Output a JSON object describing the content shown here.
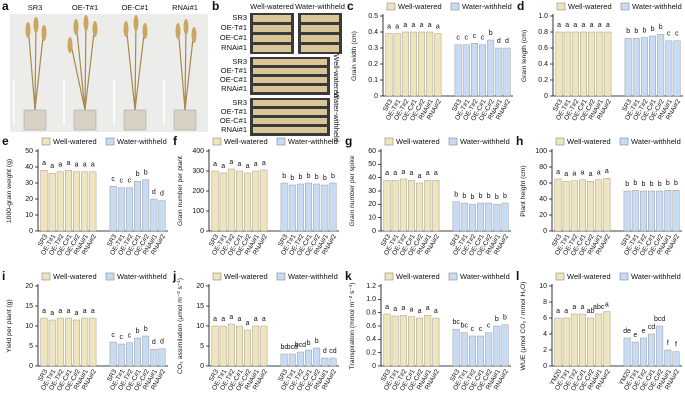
{
  "panels": {
    "a": {
      "label": "a",
      "plants": [
        "SR3",
        "OE-T#1",
        "OE-C#1",
        "RNAi#1"
      ]
    },
    "b": {
      "label": "b",
      "columns": [
        "Well-watered",
        "Water-withheld"
      ],
      "rows": [
        "SR3",
        "OE-T#1",
        "OE-C#1",
        "RNAi#1"
      ],
      "side_labels": [
        "Well-watered",
        "Water-withheld"
      ]
    }
  },
  "chart_data": [
    {
      "type": "bar",
      "label": "c",
      "ylabel": "Grain width (cm)",
      "categories": [
        "SR3",
        "OE-T#1",
        "OE-T#2",
        "OE-C#1",
        "OE-C#2",
        "RNAi#1",
        "RNAi#2"
      ],
      "ylim": [
        0,
        0.5
      ],
      "yticks": [
        0,
        0.1,
        0.2,
        0.3,
        0.4,
        0.5
      ],
      "series": [
        {
          "name": "Well-watered",
          "color": "#efe4bb",
          "values": [
            0.39,
            0.39,
            0.4,
            0.4,
            0.4,
            0.4,
            0.39
          ],
          "letters": [
            "a",
            "a",
            "a",
            "a",
            "a",
            "a",
            "a"
          ]
        },
        {
          "name": "Water-withheld",
          "color": "#c7dbf3",
          "values": [
            0.32,
            0.32,
            0.33,
            0.32,
            0.35,
            0.3,
            0.3
          ],
          "letters": [
            "c",
            "c",
            "c",
            "c",
            "b",
            "d",
            "d"
          ]
        }
      ]
    },
    {
      "type": "bar",
      "label": "d",
      "ylabel": "Grain length (cm)",
      "categories": [
        "SR3",
        "OE-T#1",
        "OE-T#2",
        "OE-C#1",
        "OE-C#2",
        "RNAi#1",
        "RNAi#2"
      ],
      "ylim": [
        0,
        1
      ],
      "yticks": [
        0,
        0.2,
        0.4,
        0.6,
        0.8,
        {
          "value": 1,
          "label": "1.0"
        }
      ],
      "series": [
        {
          "name": "Well-watered",
          "color": "#efe4bb",
          "values": [
            0.8,
            0.8,
            0.8,
            0.8,
            0.8,
            0.8,
            0.8
          ],
          "letters": [
            "a",
            "a",
            "a",
            "a",
            "a",
            "a",
            "a"
          ]
        },
        {
          "name": "Water-withheld",
          "color": "#c7dbf3",
          "values": [
            0.72,
            0.72,
            0.73,
            0.75,
            0.77,
            0.69,
            0.69
          ],
          "letters": [
            "b",
            "b",
            "b",
            "b",
            "b",
            "c",
            "c"
          ]
        }
      ]
    },
    {
      "type": "bar",
      "label": "e",
      "ylabel": "1000-grain weight (g)",
      "categories": [
        "SR3",
        "OE-T#1",
        "OE-T#2",
        "OE-C#1",
        "OE-C#2",
        "RNAi#1",
        "RNAi#2"
      ],
      "ylim": [
        0,
        50
      ],
      "yticks": [
        0,
        10,
        20,
        30,
        40,
        50
      ],
      "series": [
        {
          "name": "Well-watered",
          "color": "#efe4bb",
          "values": [
            38,
            36,
            37,
            38,
            37,
            37,
            37
          ],
          "letters": [
            "a",
            "a",
            "a",
            "a",
            "a",
            "a",
            "a"
          ]
        },
        {
          "name": "Water-withheld",
          "color": "#c7dbf3",
          "values": [
            28,
            27,
            27,
            31,
            32,
            20,
            19
          ],
          "letters": [
            "c",
            "c",
            "c",
            "b",
            "b",
            "d",
            "d"
          ]
        }
      ]
    },
    {
      "type": "bar",
      "label": "f",
      "ylabel": "Grain number per plant",
      "categories": [
        "SR3",
        "OE-T#1",
        "OE-T#2",
        "OE-C#1",
        "OE-C#2",
        "RNAi#1",
        "RNAi#2"
      ],
      "ylim": [
        0,
        400
      ],
      "yticks": [
        0,
        100,
        200,
        300,
        400
      ],
      "series": [
        {
          "name": "Well-watered",
          "color": "#efe4bb",
          "values": [
            300,
            290,
            310,
            300,
            290,
            300,
            305
          ],
          "letters": [
            "a",
            "a",
            "a",
            "a",
            "a",
            "a",
            "a"
          ]
        },
        {
          "name": "Water-withheld",
          "color": "#c7dbf3",
          "values": [
            240,
            230,
            235,
            240,
            235,
            230,
            240
          ],
          "letters": [
            "b",
            "b",
            "b",
            "b",
            "b",
            "b",
            "b"
          ]
        }
      ]
    },
    {
      "type": "bar",
      "label": "g",
      "ylabel": "Grain number per spike",
      "categories": [
        "SR3",
        "OE-T#1",
        "OE-T#2",
        "OE-C#1",
        "OE-C#2",
        "RNAi#1",
        "RNAi#2"
      ],
      "ylim": [
        0,
        60
      ],
      "yticks": [
        0,
        10,
        20,
        30,
        40,
        50,
        60
      ],
      "series": [
        {
          "name": "Well-watered",
          "color": "#efe4bb",
          "values": [
            38,
            38,
            39,
            38,
            36,
            38,
            38
          ],
          "letters": [
            "a",
            "a",
            "a",
            "a",
            "a",
            "a",
            "a"
          ]
        },
        {
          "name": "Water-withheld",
          "color": "#c7dbf3",
          "values": [
            22,
            21,
            20,
            21,
            21,
            20,
            21
          ],
          "letters": [
            "b",
            "b",
            "b",
            "b",
            "b",
            "b",
            "b"
          ]
        }
      ]
    },
    {
      "type": "bar",
      "label": "h",
      "ylabel": "Plant height (cm)",
      "categories": [
        "SR3",
        "OE-T#1",
        "OE-T#2",
        "OE-C#1",
        "OE-C#2",
        "RNAi#1",
        "RNAi#2"
      ],
      "ylim": [
        0,
        100
      ],
      "yticks": [
        0,
        20,
        40,
        60,
        80,
        100
      ],
      "series": [
        {
          "name": "Well-watered",
          "color": "#efe4bb",
          "values": [
            65,
            62,
            63,
            64,
            62,
            64,
            66
          ],
          "letters": [
            "a",
            "a",
            "a",
            "a",
            "a",
            "a",
            "a"
          ]
        },
        {
          "name": "Water-withheld",
          "color": "#c7dbf3",
          "values": [
            50,
            51,
            50,
            50,
            50,
            51,
            51
          ],
          "letters": [
            "b",
            "b",
            "b",
            "b",
            "b",
            "b",
            "b"
          ]
        }
      ]
    },
    {
      "type": "bar",
      "label": "i",
      "ylabel": "Yield per plant (g)",
      "categories": [
        "SR3",
        "OE-T#1",
        "OE-T#2",
        "OE-C#1",
        "OE-C#2",
        "RNAi#1",
        "RNAi#2"
      ],
      "ylim": [
        0,
        20
      ],
      "yticks": [
        0,
        5,
        10,
        15,
        20
      ],
      "series": [
        {
          "name": "Well-watered",
          "color": "#efe4bb",
          "values": [
            12,
            11.5,
            12,
            12,
            11.5,
            12,
            12
          ],
          "letters": [
            "a",
            "a",
            "a",
            "a",
            "a",
            "a",
            "a"
          ]
        },
        {
          "name": "Water-withheld",
          "color": "#c7dbf3",
          "values": [
            6,
            5.5,
            5.8,
            7,
            7.5,
            4.2,
            4.3
          ],
          "letters": [
            "c",
            "c",
            "c",
            "b",
            "b",
            "d",
            "d"
          ]
        }
      ]
    },
    {
      "type": "bar",
      "label": "j",
      "ylabel": "CO₂ assimilation (μmol m⁻² s⁻¹)",
      "categories": [
        "SR3",
        "OE-T#1",
        "OE-T#2",
        "OE-C#1",
        "OE-C#2",
        "RNAi#1",
        "RNAi#2"
      ],
      "ylim": [
        0,
        20
      ],
      "yticks": [
        0,
        5,
        10,
        15,
        20
      ],
      "series": [
        {
          "name": "Well-watered",
          "color": "#efe4bb",
          "values": [
            10,
            10,
            10.5,
            10,
            9,
            10,
            10
          ],
          "letters": [
            "a",
            "a",
            "a",
            "a",
            "a",
            "a",
            "a"
          ]
        },
        {
          "name": "Water-withheld",
          "color": "#c7dbf3",
          "values": [
            3,
            3,
            3.5,
            4,
            4.5,
            2,
            2
          ],
          "letters": [
            "bc",
            "bcd",
            "bcd",
            "b",
            "b",
            "d",
            "cd"
          ]
        }
      ]
    },
    {
      "type": "bar",
      "label": "k",
      "ylabel": "Transpiration (mmol m⁻² s⁻¹)",
      "categories": [
        "SR3",
        "OE-T#1",
        "OE-T#2",
        "OE-C#1",
        "OE-C#2",
        "RNAi#1",
        "RNAi#2"
      ],
      "ylim": [
        0,
        1.2
      ],
      "yticks": [
        0,
        0.2,
        0.4,
        0.6,
        0.8,
        {
          "value": 1,
          "label": "1.0"
        },
        1.2
      ],
      "series": [
        {
          "name": "Well-watered",
          "color": "#efe4bb",
          "values": [
            0.78,
            0.75,
            0.76,
            0.74,
            0.72,
            0.76,
            0.72
          ],
          "letters": [
            "a",
            "a",
            "a",
            "a",
            "a",
            "a",
            "a"
          ]
        },
        {
          "name": "Water-withheld",
          "color": "#c7dbf3",
          "values": [
            0.55,
            0.5,
            0.45,
            0.45,
            0.5,
            0.6,
            0.62
          ],
          "letters": [
            "bc",
            "bc",
            "c",
            "c",
            "c",
            "b",
            "b"
          ]
        }
      ]
    },
    {
      "type": "bar",
      "label": "l",
      "ylabel": "WUE (μmol CO₂ / mmol H₂O)",
      "categories": [
        "YM20",
        "OE-T#1",
        "OE-T#2",
        "OE-C#1",
        "OE-C#2",
        "RNAi#1",
        "RNAi#2"
      ],
      "ylim": [
        0,
        10
      ],
      "yticks": [
        0,
        2,
        4,
        6,
        8,
        10
      ],
      "series": [
        {
          "name": "Well-watered",
          "color": "#efe4bb",
          "values": [
            6,
            6,
            6.5,
            6.5,
            6,
            6.5,
            6.8
          ],
          "letters": [
            "a",
            "a",
            "a",
            "a",
            "ab",
            "abc",
            "a"
          ]
        },
        {
          "name": "Water-withheld",
          "color": "#c7dbf3",
          "values": [
            3.5,
            3,
            3.5,
            4,
            5,
            2,
            1.8
          ],
          "letters": [
            "de",
            "e",
            "e",
            "cd",
            "bcd",
            "f",
            "f"
          ]
        }
      ]
    }
  ]
}
